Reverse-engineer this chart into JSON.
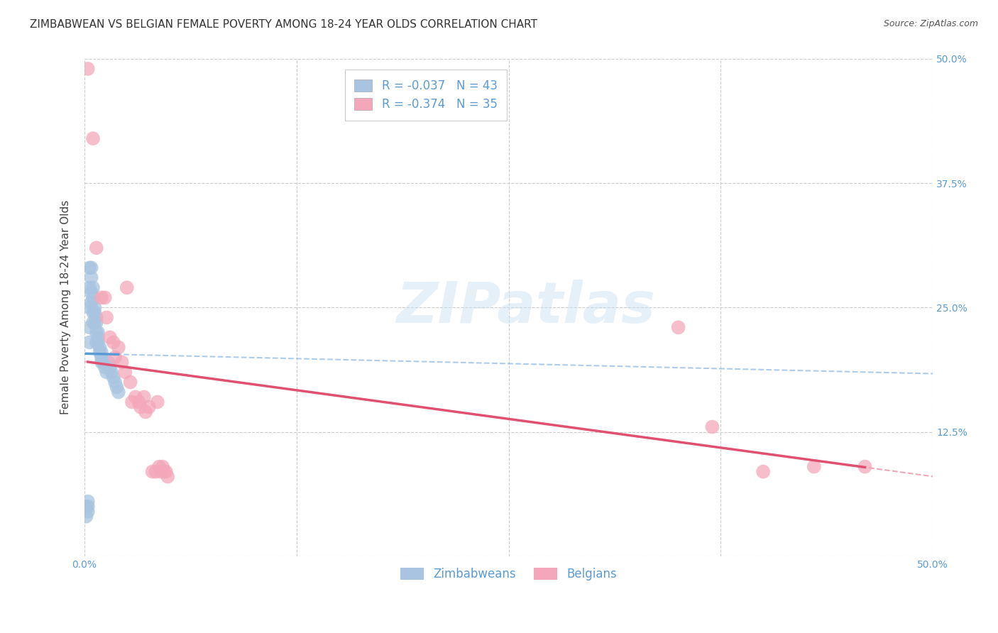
{
  "title": "ZIMBABWEAN VS BELGIAN FEMALE POVERTY AMONG 18-24 YEAR OLDS CORRELATION CHART",
  "source": "Source: ZipAtlas.com",
  "ylabel": "Female Poverty Among 18-24 Year Olds",
  "xlim": [
    0.0,
    0.5
  ],
  "ylim": [
    0.0,
    0.5
  ],
  "zim_color": "#a8c4e0",
  "bel_color": "#f4a7b9",
  "zim_R": -0.037,
  "zim_N": 43,
  "bel_R": -0.374,
  "bel_N": 35,
  "zim_line_color": "#5b9bd5",
  "bel_line_color": "#e05070",
  "grid_color": "#cccccc",
  "background_color": "#ffffff",
  "title_fontsize": 11,
  "axis_label_fontsize": 11,
  "tick_fontsize": 10,
  "legend_fontsize": 12,
  "zim_points_x": [
    0.001,
    0.001,
    0.002,
    0.002,
    0.002,
    0.003,
    0.003,
    0.003,
    0.003,
    0.003,
    0.004,
    0.004,
    0.004,
    0.004,
    0.005,
    0.005,
    0.005,
    0.005,
    0.006,
    0.006,
    0.006,
    0.007,
    0.007,
    0.007,
    0.007,
    0.008,
    0.008,
    0.008,
    0.009,
    0.009,
    0.01,
    0.01,
    0.01,
    0.011,
    0.012,
    0.013,
    0.014,
    0.015,
    0.016,
    0.017,
    0.018,
    0.019,
    0.02
  ],
  "zim_points_y": [
    0.05,
    0.04,
    0.055,
    0.05,
    0.045,
    0.29,
    0.27,
    0.25,
    0.23,
    0.215,
    0.29,
    0.28,
    0.265,
    0.255,
    0.27,
    0.26,
    0.245,
    0.235,
    0.25,
    0.245,
    0.235,
    0.24,
    0.235,
    0.225,
    0.215,
    0.225,
    0.22,
    0.215,
    0.21,
    0.205,
    0.205,
    0.2,
    0.195,
    0.195,
    0.19,
    0.185,
    0.195,
    0.19,
    0.185,
    0.18,
    0.175,
    0.17,
    0.165
  ],
  "bel_points_x": [
    0.002,
    0.005,
    0.007,
    0.01,
    0.012,
    0.013,
    0.015,
    0.017,
    0.018,
    0.02,
    0.022,
    0.024,
    0.025,
    0.027,
    0.028,
    0.03,
    0.032,
    0.033,
    0.035,
    0.036,
    0.038,
    0.04,
    0.042,
    0.043,
    0.044,
    0.045,
    0.046,
    0.047,
    0.048,
    0.049,
    0.35,
    0.37,
    0.4,
    0.43,
    0.46
  ],
  "bel_points_y": [
    0.49,
    0.42,
    0.31,
    0.26,
    0.26,
    0.24,
    0.22,
    0.215,
    0.2,
    0.21,
    0.195,
    0.185,
    0.27,
    0.175,
    0.155,
    0.16,
    0.155,
    0.15,
    0.16,
    0.145,
    0.15,
    0.085,
    0.085,
    0.155,
    0.09,
    0.085,
    0.09,
    0.085,
    0.085,
    0.08,
    0.23,
    0.13,
    0.085,
    0.09,
    0.09
  ]
}
